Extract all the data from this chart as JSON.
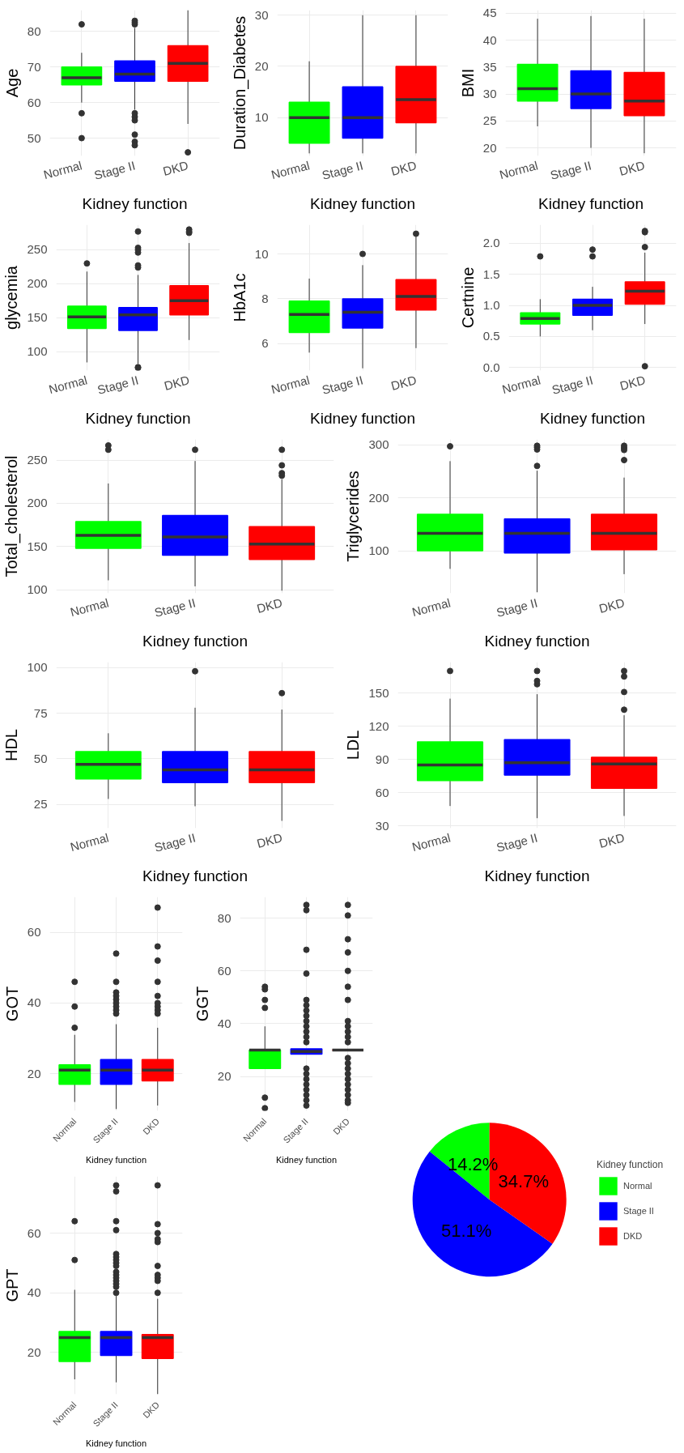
{
  "chart_data": [
    {
      "type": "box",
      "xlabel": "Kidney function",
      "ylabel": "Age",
      "categories": [
        "Normal",
        "Stage II",
        "DKD"
      ],
      "colors": [
        "#00ff00",
        "#0000ff",
        "#ff0000"
      ],
      "grid": true,
      "ylim": [
        45,
        86
      ],
      "yticks": [
        50,
        60,
        70,
        80
      ],
      "boxes": [
        {
          "low": 60,
          "q1": 65,
          "median": 67,
          "q3": 70,
          "high": 74,
          "outliers": [
            82,
            57,
            50
          ]
        },
        {
          "low": 58,
          "q1": 66,
          "median": 68,
          "q3": 71.7,
          "high": 81,
          "outliers": [
            83,
            82.5,
            82,
            57,
            56,
            55,
            51,
            49,
            48
          ]
        },
        {
          "low": 54,
          "q1": 66,
          "median": 71,
          "q3": 76,
          "high": 86,
          "outliers": [
            46
          ]
        }
      ]
    },
    {
      "type": "box",
      "xlabel": "Kidney function",
      "ylabel": "Duration_Diabetes",
      "categories": [
        "Normal",
        "Stage II",
        "DKD"
      ],
      "colors": [
        "#00ff00",
        "#0000ff",
        "#ff0000"
      ],
      "grid": true,
      "ylim": [
        2.5,
        31
      ],
      "yticks": [
        10,
        20,
        30
      ],
      "boxes": [
        {
          "low": 3,
          "q1": 5,
          "median": 10,
          "q3": 13,
          "high": 21
        },
        {
          "low": 3,
          "q1": 6,
          "median": 10,
          "q3": 16,
          "high": 30
        },
        {
          "low": 3,
          "q1": 9,
          "median": 13.5,
          "q3": 20,
          "high": 30
        }
      ]
    },
    {
      "type": "box",
      "xlabel": "Kidney function",
      "ylabel": "BMI",
      "categories": [
        "Normal",
        "Stage II",
        "DKD"
      ],
      "colors": [
        "#00ff00",
        "#0000ff",
        "#ff0000"
      ],
      "grid": true,
      "ylim": [
        18.5,
        45.6
      ],
      "yticks": [
        20,
        25,
        30,
        35,
        40,
        45
      ],
      "boxes": [
        {
          "low": 24,
          "q1": 28.7,
          "median": 31,
          "q3": 35.5,
          "high": 44
        },
        {
          "low": 20,
          "q1": 27.3,
          "median": 30,
          "q3": 34.3,
          "high": 44.5
        },
        {
          "low": 19,
          "q1": 26,
          "median": 28.7,
          "q3": 34,
          "high": 44
        }
      ]
    },
    {
      "type": "box",
      "xlabel": "Kidney function",
      "ylabel": "glycemia",
      "categories": [
        "Normal",
        "Stage II",
        "DKD"
      ],
      "colors": [
        "#00ff00",
        "#0000ff",
        "#ff0000"
      ],
      "grid": true,
      "ylim": [
        72,
        287
      ],
      "yticks": [
        100,
        150,
        200,
        250
      ],
      "boxes": [
        {
          "low": 84,
          "q1": 134,
          "median": 151,
          "q3": 167,
          "high": 218,
          "outliers": [
            230
          ]
        },
        {
          "low": 82,
          "q1": 131,
          "median": 154,
          "q3": 165,
          "high": 213,
          "outliers": [
            277,
            253,
            250,
            246,
            227,
            224,
            77,
            76
          ]
        },
        {
          "low": 117,
          "q1": 154,
          "median": 175,
          "q3": 197,
          "high": 260,
          "outliers": [
            280,
            277,
            275
          ]
        }
      ]
    },
    {
      "type": "box",
      "xlabel": "Kidney function",
      "ylabel": "HbA1c",
      "categories": [
        "Normal",
        "Stage II",
        "DKD"
      ],
      "colors": [
        "#00ff00",
        "#0000ff",
        "#ff0000"
      ],
      "grid": true,
      "ylim": [
        4.8,
        11.3
      ],
      "yticks": [
        6,
        8,
        10
      ],
      "boxes": [
        {
          "low": 5.6,
          "q1": 6.5,
          "median": 7.3,
          "q3": 7.9,
          "high": 8.9
        },
        {
          "low": 4.9,
          "q1": 6.7,
          "median": 7.4,
          "q3": 8.0,
          "high": 9.5,
          "outliers": [
            10
          ]
        },
        {
          "low": 5.8,
          "q1": 7.5,
          "median": 8.1,
          "q3": 8.85,
          "high": 10.8,
          "outliers": [
            10.9
          ]
        }
      ]
    },
    {
      "type": "box",
      "xlabel": "Kidney function",
      "ylabel": "Certnine",
      "categories": [
        "Normal",
        "Stage II",
        "DKD"
      ],
      "colors": [
        "#00ff00",
        "#0000ff",
        "#ff0000"
      ],
      "grid": true,
      "ylim": [
        -0.05,
        2.3
      ],
      "yticks": [
        {
          "value": 0,
          "label": "0.0"
        },
        {
          "value": 0.5,
          "label": "0.5"
        },
        {
          "value": 1,
          "label": "1.0"
        },
        {
          "value": 1.5,
          "label": "1.5"
        },
        {
          "value": 2,
          "label": "2.0"
        }
      ],
      "boxes": [
        {
          "low": 0.5,
          "q1": 0.7,
          "median": 0.79,
          "q3": 0.88,
          "high": 1.1,
          "outliers": [
            1.79
          ]
        },
        {
          "low": 0.6,
          "q1": 0.84,
          "median": 1.0,
          "q3": 1.1,
          "high": 1.3,
          "outliers": [
            1.9,
            1.79
          ]
        },
        {
          "low": 0.7,
          "q1": 1.02,
          "median": 1.23,
          "q3": 1.38,
          "high": 1.85,
          "outliers": [
            2.2,
            2.18,
            1.94,
            0.02
          ]
        }
      ]
    },
    {
      "type": "box",
      "xlabel": "Kidney function",
      "ylabel": "Total_cholesterol",
      "categories": [
        "Normal",
        "Stage II",
        "DKD"
      ],
      "colors": [
        "#00ff00",
        "#0000ff",
        "#ff0000"
      ],
      "grid": true,
      "ylim": [
        96,
        274
      ],
      "yticks": [
        100,
        150,
        200,
        250
      ],
      "boxes": [
        {
          "low": 111,
          "q1": 148,
          "median": 163,
          "q3": 179,
          "high": 223,
          "outliers": [
            267,
            262
          ]
        },
        {
          "low": 104,
          "q1": 140,
          "median": 161,
          "q3": 186,
          "high": 249,
          "outliers": [
            262
          ]
        },
        {
          "low": 99,
          "q1": 135,
          "median": 153,
          "q3": 173,
          "high": 228,
          "outliers": [
            262,
            244,
            235,
            232
          ]
        }
      ]
    },
    {
      "type": "box",
      "xlabel": "Kidney function",
      "ylabel": "Triglycerides",
      "categories": [
        "Normal",
        "Stage II",
        "DKD"
      ],
      "colors": [
        "#00ff00",
        "#0000ff",
        "#ff0000"
      ],
      "grid": true,
      "ylim": [
        20,
        310
      ],
      "yticks": [
        100,
        200,
        300
      ],
      "boxes": [
        {
          "low": 66,
          "q1": 100,
          "median": 133,
          "q3": 169,
          "high": 269,
          "outliers": [
            297
          ]
        },
        {
          "low": 22,
          "q1": 96,
          "median": 133,
          "q3": 160,
          "high": 251,
          "outliers": [
            298,
            295,
            291,
            260
          ]
        },
        {
          "low": 56,
          "q1": 102,
          "median": 133,
          "q3": 169,
          "high": 238,
          "outliers": [
            298,
            294,
            290,
            271
          ]
        }
      ]
    },
    {
      "type": "box",
      "xlabel": "Kidney function",
      "ylabel": "HDL",
      "categories": [
        "Normal",
        "Stage II",
        "DKD"
      ],
      "colors": [
        "#00ff00",
        "#0000ff",
        "#ff0000"
      ],
      "grid": true,
      "ylim": [
        12,
        103
      ],
      "yticks": [
        25,
        50,
        75,
        100
      ],
      "boxes": [
        {
          "low": 28,
          "q1": 39,
          "median": 47,
          "q3": 54,
          "high": 64
        },
        {
          "low": 24,
          "q1": 37,
          "median": 44,
          "q3": 54,
          "high": 78,
          "outliers": [
            98
          ]
        },
        {
          "low": 16,
          "q1": 37,
          "median": 44,
          "q3": 54,
          "high": 77,
          "outliers": [
            86
          ]
        }
      ]
    },
    {
      "type": "box",
      "xlabel": "Kidney function",
      "ylabel": "LDL",
      "categories": [
        "Normal",
        "Stage II",
        "DKD"
      ],
      "colors": [
        "#00ff00",
        "#0000ff",
        "#ff0000"
      ],
      "grid": true,
      "ylim": [
        28,
        178
      ],
      "yticks": [
        30,
        60,
        90,
        120,
        150
      ],
      "boxes": [
        {
          "low": 48,
          "q1": 71,
          "median": 85,
          "q3": 106,
          "high": 145,
          "outliers": [
            170
          ]
        },
        {
          "low": 37,
          "q1": 76,
          "median": 87,
          "q3": 108,
          "high": 149,
          "outliers": [
            170,
            161,
            158
          ]
        },
        {
          "low": 39,
          "q1": 64,
          "median": 86,
          "q3": 92,
          "high": 130,
          "outliers": [
            170,
            165,
            151,
            135
          ]
        }
      ]
    },
    {
      "type": "box",
      "xlabel": "Kidney function",
      "ylabel": "GOT",
      "categories": [
        "Normal",
        "Stage II",
        "DKD"
      ],
      "colors": [
        "#00ff00",
        "#0000ff",
        "#ff0000"
      ],
      "grid": true,
      "ylim": [
        9.5,
        70
      ],
      "yticks": [
        20,
        40,
        60
      ],
      "boxes": [
        {
          "low": 12,
          "q1": 17,
          "median": 21,
          "q3": 22.5,
          "high": 31,
          "outliers": [
            46,
            39,
            33
          ]
        },
        {
          "low": 10,
          "q1": 17,
          "median": 21,
          "q3": 24,
          "high": 34,
          "outliers": [
            54,
            46,
            43,
            42,
            41,
            40,
            39,
            38,
            37
          ]
        },
        {
          "low": 11,
          "q1": 18,
          "median": 21,
          "q3": 24,
          "high": 33,
          "outliers": [
            67,
            56,
            52,
            46,
            42,
            40,
            39,
            38,
            37
          ]
        }
      ]
    },
    {
      "type": "box",
      "xlabel": "Kidney function",
      "ylabel": "GGT",
      "categories": [
        "Normal",
        "Stage II",
        "DKD"
      ],
      "colors": [
        "#00ff00",
        "#0000ff",
        "#ff0000"
      ],
      "grid": true,
      "ylim": [
        7,
        88
      ],
      "yticks": [
        20,
        40,
        60,
        80
      ],
      "boxes": [
        {
          "low": 23,
          "q1": 23,
          "median": 30,
          "q3": 30,
          "high": 39,
          "outliers": [
            54,
            53,
            49,
            46,
            12,
            8
          ]
        },
        {
          "low": 28.5,
          "q1": 28.5,
          "median": 29.5,
          "q3": 30.5,
          "high": 30.5,
          "outliers": [
            85,
            83,
            68,
            59,
            49,
            47,
            45,
            43,
            41,
            39,
            37,
            35,
            33,
            23,
            21,
            19,
            17,
            15,
            13,
            11,
            9
          ]
        },
        {
          "low": 30,
          "q1": 30,
          "median": 30,
          "q3": 30,
          "high": 30,
          "outliers": [
            85,
            81,
            72,
            67,
            60,
            54,
            49,
            41,
            39,
            37,
            35,
            33,
            27,
            25,
            23,
            21,
            19,
            17,
            15,
            13,
            11,
            10
          ]
        }
      ]
    },
    {
      "type": "pie",
      "categories": [
        "Normal",
        "Stage II",
        "DKD"
      ],
      "values": [
        14.2,
        51.1,
        34.7
      ],
      "colors": [
        "#00ff00",
        "#0000ff",
        "#ff0000"
      ],
      "value_labels": [
        "14.2%",
        "51.1%",
        "34.7%"
      ],
      "legend_title": "Kidney function",
      "legend": "right"
    },
    {
      "type": "box",
      "xlabel": "Kidney function",
      "ylabel": "GPT",
      "categories": [
        "Normal",
        "Stage II",
        "DKD"
      ],
      "colors": [
        "#00ff00",
        "#0000ff",
        "#ff0000"
      ],
      "grid": true,
      "ylim": [
        6,
        79
      ],
      "yticks": [
        20,
        40,
        60
      ],
      "boxes": [
        {
          "low": 11,
          "q1": 17,
          "median": 25,
          "q3": 27,
          "high": 41,
          "outliers": [
            64,
            51
          ]
        },
        {
          "low": 10,
          "q1": 19,
          "median": 25,
          "q3": 27,
          "high": 39,
          "outliers": [
            76,
            74,
            64,
            61,
            53,
            52,
            51,
            50,
            49,
            47,
            46,
            45,
            44,
            43,
            42,
            40
          ]
        },
        {
          "low": 6,
          "q1": 18,
          "median": 25,
          "q3": 26,
          "high": 38,
          "outliers": [
            76,
            63,
            60,
            58,
            57,
            49,
            46,
            45,
            44,
            40
          ]
        }
      ]
    }
  ]
}
